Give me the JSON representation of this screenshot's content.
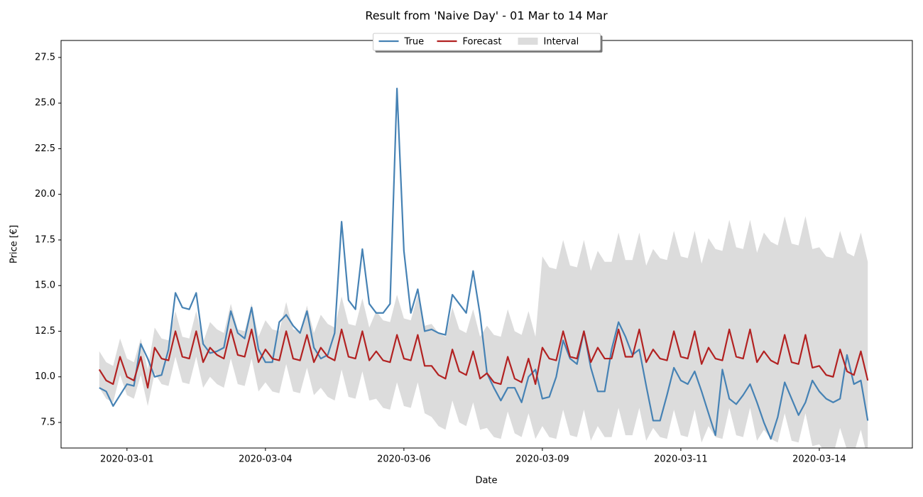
{
  "chart_data": {
    "type": "line",
    "title": "Result from 'Naive Day' - 01 Mar to 14 Mar",
    "x_label": "Date",
    "y_label": "Price [€]",
    "legend": "upper center",
    "xlim": [
      -0.69,
      14.68
    ],
    "xticks": [
      {
        "value": 0.5,
        "label": "2020-03-01"
      },
      {
        "value": 3,
        "label": "2020-03-04"
      },
      {
        "value": 5.5,
        "label": "2020-03-06"
      },
      {
        "value": 8,
        "label": "2020-03-09"
      },
      {
        "value": 10.5,
        "label": "2020-03-11"
      },
      {
        "value": 13,
        "label": "2020-03-14"
      }
    ],
    "ylim": [
      6.1,
      28.43
    ],
    "yticks": [
      7.5,
      {
        "value": 10,
        "label": "10.0"
      },
      12.5,
      {
        "value": 15,
        "label": "15.0"
      },
      17.5,
      {
        "value": 20,
        "label": "20.0"
      },
      22.5,
      {
        "value": 25,
        "label": "25.0"
      },
      27.5
    ],
    "x": [
      0,
      0.125,
      0.25,
      0.375,
      0.5,
      0.625,
      0.75,
      0.875,
      1,
      1.125,
      1.25,
      1.375,
      1.5,
      1.625,
      1.75,
      1.875,
      2,
      2.125,
      2.25,
      2.375,
      2.5,
      2.625,
      2.75,
      2.875,
      3,
      3.125,
      3.25,
      3.375,
      3.5,
      3.625,
      3.75,
      3.875,
      4,
      4.125,
      4.25,
      4.375,
      4.5,
      4.625,
      4.75,
      4.875,
      5,
      5.125,
      5.25,
      5.375,
      5.5,
      5.625,
      5.75,
      5.875,
      6,
      6.125,
      6.25,
      6.375,
      6.5,
      6.625,
      6.75,
      6.875,
      7,
      7.125,
      7.25,
      7.375,
      7.5,
      7.625,
      7.75,
      7.875,
      8,
      8.125,
      8.25,
      8.375,
      8.5,
      8.625,
      8.75,
      8.875,
      9,
      9.125,
      9.25,
      9.375,
      9.5,
      9.625,
      9.75,
      9.875,
      10,
      10.125,
      10.25,
      10.375,
      10.5,
      10.625,
      10.75,
      10.875,
      11,
      11.125,
      11.25,
      11.375,
      11.5,
      11.625,
      11.75,
      11.875,
      12,
      12.125,
      12.25,
      12.375,
      12.5,
      12.625,
      12.75,
      12.875,
      13,
      13.125,
      13.25,
      13.375,
      13.5,
      13.625,
      13.75,
      13.875
    ],
    "interval": {
      "name": "Interval",
      "color": "#dcdcdc",
      "upper": [
        11.4,
        10.8,
        10.6,
        12.1,
        11.0,
        10.8,
        12.1,
        10.4,
        12.7,
        12.1,
        12.0,
        13.6,
        12.2,
        12.1,
        13.6,
        11.9,
        13.0,
        12.6,
        12.4,
        14.0,
        12.6,
        12.5,
        14.0,
        12.2,
        13.1,
        12.6,
        12.5,
        14.1,
        12.6,
        12.5,
        13.9,
        12.4,
        13.4,
        12.9,
        12.7,
        14.4,
        12.9,
        12.8,
        14.3,
        12.7,
        13.6,
        13.1,
        13.0,
        14.5,
        13.2,
        13.1,
        14.5,
        12.8,
        12.9,
        12.4,
        12.2,
        13.8,
        12.6,
        12.4,
        13.7,
        12.2,
        12.8,
        12.3,
        12.2,
        13.7,
        12.5,
        12.3,
        13.6,
        12.2,
        16.6,
        16.0,
        15.9,
        17.5,
        16.1,
        16.0,
        17.5,
        15.8,
        16.9,
        16.3,
        16.3,
        17.9,
        16.4,
        16.4,
        17.9,
        16.1,
        17.0,
        16.5,
        16.4,
        18.0,
        16.6,
        16.5,
        18.0,
        16.2,
        17.6,
        17.0,
        16.9,
        18.6,
        17.1,
        17.0,
        18.6,
        16.8,
        17.9,
        17.4,
        17.2,
        18.8,
        17.3,
        17.2,
        18.8,
        17.0,
        17.1,
        16.6,
        16.5,
        18.0,
        16.8,
        16.6,
        17.9,
        16.3
      ],
      "lower": [
        9.4,
        8.8,
        8.6,
        10.1,
        9.0,
        8.8,
        10.1,
        8.4,
        10.2,
        9.6,
        9.5,
        11.1,
        9.7,
        9.6,
        11.1,
        9.4,
        10.0,
        9.6,
        9.4,
        11.0,
        9.6,
        9.5,
        11.0,
        9.2,
        9.7,
        9.2,
        9.1,
        10.7,
        9.2,
        9.1,
        10.5,
        9.0,
        9.4,
        8.9,
        8.7,
        10.4,
        8.9,
        8.8,
        10.3,
        8.7,
        8.8,
        8.3,
        8.2,
        9.7,
        8.4,
        8.3,
        9.7,
        8.0,
        7.8,
        7.3,
        7.1,
        8.7,
        7.5,
        7.3,
        8.6,
        7.1,
        7.2,
        6.7,
        6.6,
        8.1,
        6.9,
        6.7,
        8.0,
        6.6,
        7.3,
        6.7,
        6.6,
        8.2,
        6.8,
        6.7,
        8.2,
        6.5,
        7.3,
        6.7,
        6.7,
        8.3,
        6.8,
        6.8,
        8.3,
        6.5,
        7.2,
        6.7,
        6.6,
        8.2,
        6.8,
        6.7,
        8.2,
        6.4,
        7.3,
        6.7,
        6.6,
        8.3,
        6.8,
        6.7,
        8.3,
        6.5,
        7.1,
        6.6,
        6.4,
        8.0,
        6.5,
        6.4,
        8.0,
        6.2,
        6.3,
        5.8,
        5.7,
        7.2,
        6.0,
        5.8,
        7.1,
        5.5
      ]
    },
    "series": [
      {
        "name": "True",
        "color": "#4682b4",
        "values": [
          9.4,
          9.2,
          8.4,
          9.0,
          9.6,
          9.5,
          11.8,
          11.0,
          10.0,
          10.1,
          11.5,
          14.6,
          13.8,
          13.7,
          14.6,
          11.8,
          11.3,
          11.4,
          11.6,
          13.6,
          12.4,
          12.1,
          13.8,
          11.5,
          10.8,
          10.8,
          13.0,
          13.4,
          12.8,
          12.4,
          13.6,
          11.6,
          11.0,
          11.2,
          12.4,
          18.5,
          14.2,
          13.7,
          17.0,
          14.0,
          13.5,
          13.5,
          14.0,
          25.8,
          16.9,
          13.5,
          14.8,
          12.5,
          12.6,
          12.4,
          12.3,
          14.5,
          14.0,
          13.5,
          15.8,
          13.4,
          10.2,
          9.4,
          8.7,
          9.4,
          9.4,
          8.6,
          10.0,
          10.4,
          8.8,
          8.9,
          10.0,
          12.0,
          11.0,
          10.7,
          12.5,
          10.5,
          9.2,
          9.2,
          11.5,
          13.0,
          12.2,
          11.2,
          11.5,
          9.5,
          7.6,
          7.6,
          9.0,
          10.5,
          9.8,
          9.6,
          10.3,
          9.2,
          8.0,
          6.8,
          10.4,
          8.8,
          8.5,
          9.0,
          9.6,
          8.6,
          7.5,
          6.6,
          7.8,
          9.7,
          8.8,
          7.9,
          8.6,
          9.8,
          9.2,
          8.8,
          8.6,
          8.8,
          11.2,
          9.6,
          9.8,
          7.6
        ]
      },
      {
        "name": "Forecast",
        "color": "#b22222",
        "values": [
          10.4,
          9.8,
          9.6,
          11.1,
          10.0,
          9.8,
          11.1,
          9.4,
          11.6,
          11.0,
          10.9,
          12.5,
          11.1,
          11.0,
          12.5,
          10.8,
          11.6,
          11.2,
          11.0,
          12.6,
          11.2,
          11.1,
          12.6,
          10.8,
          11.5,
          11.0,
          10.9,
          12.5,
          11.0,
          10.9,
          12.3,
          10.8,
          11.6,
          11.1,
          10.9,
          12.6,
          11.1,
          11.0,
          12.5,
          10.9,
          11.4,
          10.9,
          10.8,
          12.3,
          11.0,
          10.9,
          12.3,
          10.6,
          10.6,
          10.1,
          9.9,
          11.5,
          10.3,
          10.1,
          11.4,
          9.9,
          10.2,
          9.7,
          9.6,
          11.1,
          9.9,
          9.7,
          11.0,
          9.6,
          11.6,
          11.0,
          10.9,
          12.5,
          11.1,
          11.0,
          12.5,
          10.8,
          11.6,
          11.0,
          11.0,
          12.6,
          11.1,
          11.1,
          12.6,
          10.8,
          11.5,
          11.0,
          10.9,
          12.5,
          11.1,
          11.0,
          12.5,
          10.7,
          11.6,
          11.0,
          10.9,
          12.6,
          11.1,
          11.0,
          12.6,
          10.8,
          11.4,
          10.9,
          10.7,
          12.3,
          10.8,
          10.7,
          12.3,
          10.5,
          10.6,
          10.1,
          10.0,
          11.5,
          10.3,
          10.1,
          11.4,
          9.8
        ]
      }
    ]
  }
}
